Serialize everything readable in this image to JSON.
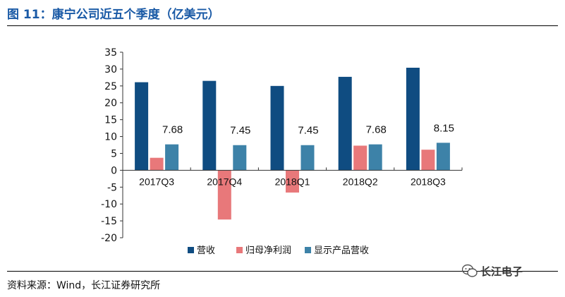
{
  "title": "图 11：康宁公司近五个季度（亿美元）",
  "source": "资料来源：Wind，长江证券研究所",
  "watermark": "长江电子",
  "chart_data": {
    "type": "bar",
    "categories": [
      "2017Q3",
      "2017Q4",
      "2018Q1",
      "2018Q2",
      "2018Q3"
    ],
    "series": [
      {
        "name": "营收",
        "values": [
          26.1,
          26.5,
          25.0,
          27.7,
          30.4
        ],
        "color": "#0f4c81"
      },
      {
        "name": "归母净利润",
        "values": [
          3.7,
          -14.6,
          -6.6,
          7.3,
          6.1
        ],
        "color": "#e8787a"
      },
      {
        "name": "显示产品营收",
        "values": [
          7.68,
          7.45,
          7.45,
          7.68,
          8.15
        ],
        "color": "#3d82a8",
        "labels": [
          "7.68",
          "7.45",
          "7.45",
          "7.68",
          "8.15"
        ]
      }
    ],
    "ylim": [
      -20,
      35
    ],
    "yticks": [
      35,
      30,
      25,
      20,
      15,
      10,
      5,
      0,
      -5,
      -10,
      -15,
      -20
    ],
    "legend_position": "bottom",
    "grid": false
  }
}
